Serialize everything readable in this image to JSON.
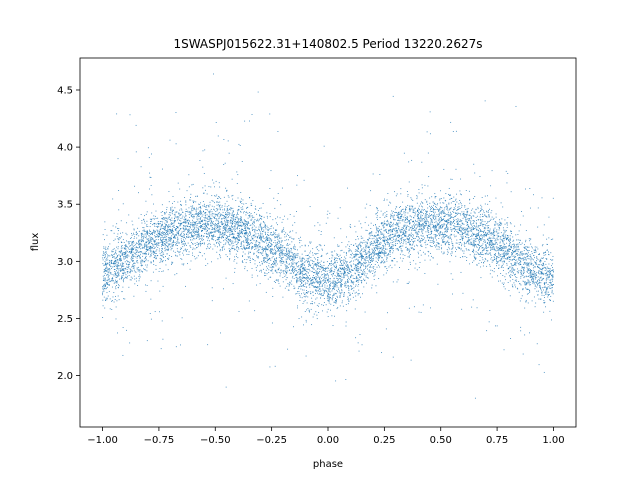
{
  "chart_data": {
    "type": "scatter",
    "title": "1SWASPJ015622.31+140802.5 Period 13220.2627s",
    "xlabel": "phase",
    "ylabel": "flux",
    "xlim": [
      -1.1,
      1.1
    ],
    "ylim": [
      1.55,
      4.78
    ],
    "xticks": [
      -1.0,
      -0.75,
      -0.5,
      -0.25,
      0.0,
      0.25,
      0.5,
      0.75,
      1.0
    ],
    "xtick_labels": [
      "−1.00",
      "−0.75",
      "−0.50",
      "−0.25",
      "0.00",
      "0.25",
      "0.50",
      "0.75",
      "1.00"
    ],
    "yticks": [
      2.0,
      2.5,
      3.0,
      3.5,
      4.0,
      4.5
    ],
    "ytick_labels": [
      "2.0",
      "2.5",
      "3.0",
      "3.5",
      "4.0",
      "4.5"
    ],
    "grid": false,
    "marker_color": "#1f77b4",
    "x_range": [
      -1.0,
      1.0
    ],
    "n_points": 8000,
    "series": [
      {
        "phase": [
          -1.0,
          -0.9,
          -0.8,
          -0.7,
          -0.6,
          -0.5,
          -0.4,
          -0.3,
          -0.2,
          -0.1,
          0.0,
          0.1,
          0.2,
          0.3,
          0.4,
          0.5,
          0.6,
          0.7,
          0.8,
          0.9,
          1.0
        ],
        "mean_flux": [
          2.88,
          3.02,
          3.14,
          3.25,
          3.32,
          3.33,
          3.27,
          3.2,
          3.05,
          2.88,
          2.82,
          2.92,
          3.1,
          3.25,
          3.32,
          3.33,
          3.3,
          3.22,
          3.08,
          2.92,
          2.86
        ],
        "scatter_sd": 0.13
      }
    ]
  }
}
